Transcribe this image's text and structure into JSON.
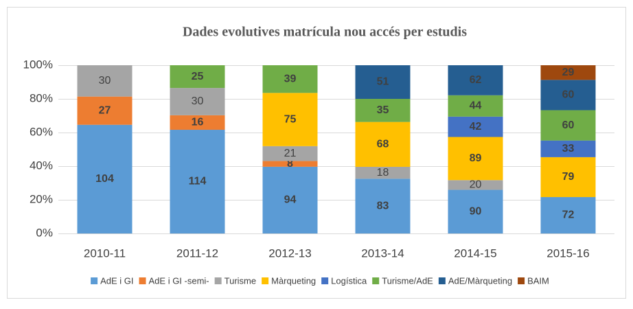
{
  "chart_data": {
    "type": "bar",
    "stacking": "percent",
    "title": "Dades evolutives matrícula nou accés per estudis",
    "categories": [
      "2010-11",
      "2011-12",
      "2012-13",
      "2013-14",
      "2014-15",
      "2015-16"
    ],
    "series": [
      {
        "name": "AdE i GI",
        "color": "#5b9bd5",
        "values": [
          104,
          114,
          94,
          83,
          90,
          72
        ]
      },
      {
        "name": "AdE i GI -semi-",
        "color": "#ed7d31",
        "values": [
          27,
          16,
          8,
          null,
          null,
          null
        ]
      },
      {
        "name": "Turisme",
        "color": "#a5a5a5",
        "values": [
          30,
          30,
          21,
          18,
          20,
          null
        ]
      },
      {
        "name": "Màrqueting",
        "color": "#ffc000",
        "values": [
          null,
          null,
          75,
          68,
          89,
          79
        ]
      },
      {
        "name": "Logística",
        "color": "#4472c4",
        "values": [
          null,
          null,
          null,
          null,
          42,
          33
        ]
      },
      {
        "name": "Turisme/AdE",
        "color": "#70ad47",
        "values": [
          null,
          25,
          39,
          35,
          44,
          60
        ]
      },
      {
        "name": "AdE/Màrqueting",
        "color": "#255e91",
        "values": [
          null,
          null,
          null,
          51,
          62,
          60
        ]
      },
      {
        "name": "BAIM",
        "color": "#9e480e",
        "values": [
          null,
          null,
          null,
          null,
          null,
          29
        ]
      }
    ],
    "ylim": [
      0,
      100
    ],
    "yticks": [
      {
        "value": 0,
        "label": "0%"
      },
      {
        "value": 20,
        "label": "20%"
      },
      {
        "value": 40,
        "label": "40%"
      },
      {
        "value": 60,
        "label": "60%"
      },
      {
        "value": 80,
        "label": "80%"
      },
      {
        "value": 100,
        "label": "100%"
      }
    ],
    "grid": true,
    "legend": "bottom"
  }
}
